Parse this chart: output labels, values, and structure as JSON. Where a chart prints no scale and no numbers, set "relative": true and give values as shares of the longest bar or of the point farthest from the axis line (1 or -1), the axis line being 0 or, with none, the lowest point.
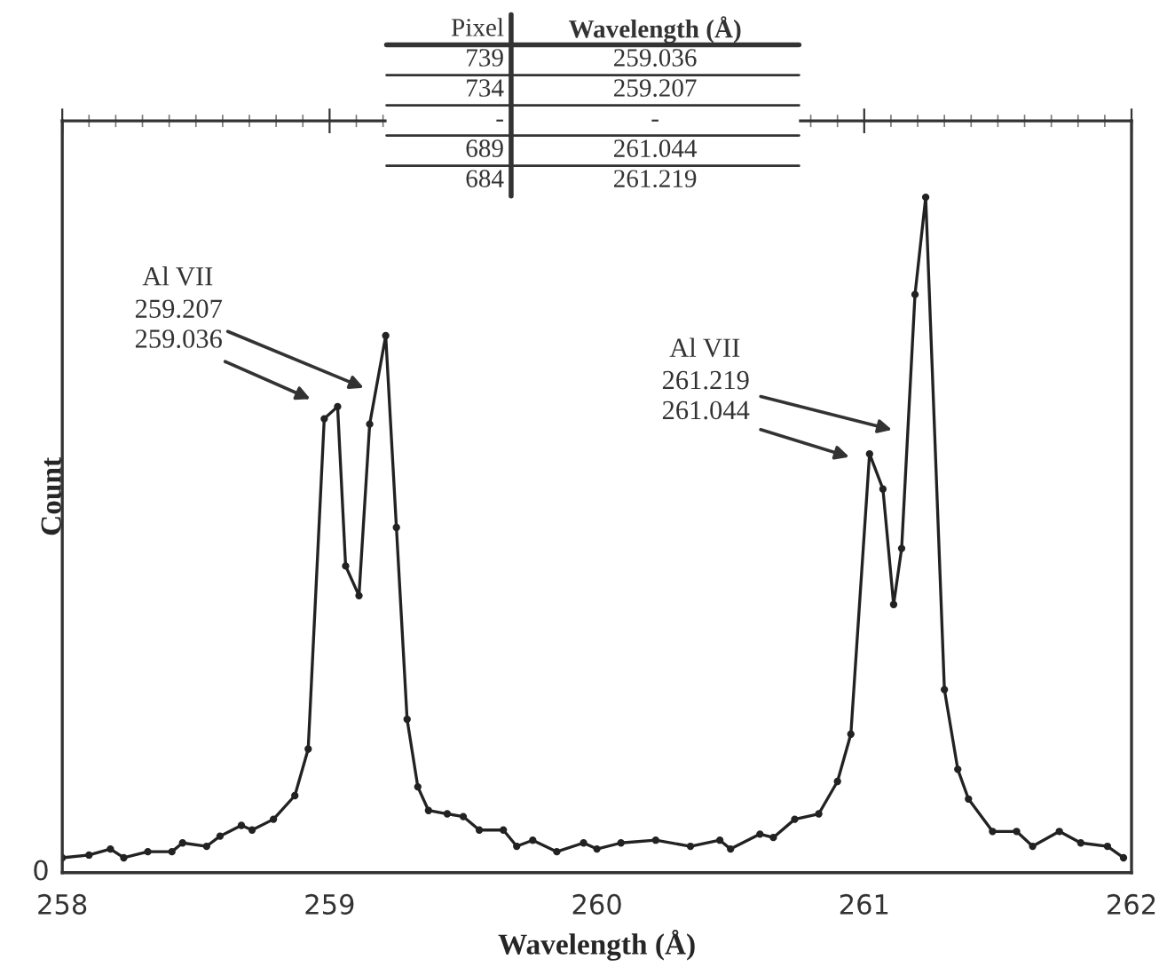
{
  "chart_data": {
    "type": "line",
    "xlabel": "Wavelength (Å)",
    "ylabel": "Count",
    "relative": true,
    "xlim": [
      258,
      262
    ],
    "xticks": [
      258,
      259,
      260,
      261,
      262
    ],
    "grid": false,
    "marker": "circle",
    "line_style": "solid",
    "series": [
      {
        "color": "#222222",
        "x": [
          258.0,
          258.1,
          258.18,
          258.23,
          258.32,
          258.41,
          258.45,
          258.54,
          258.59,
          258.67,
          258.71,
          258.79,
          258.87,
          258.92,
          258.98,
          259.03,
          259.06,
          259.11,
          259.15,
          259.21,
          259.25,
          259.29,
          259.33,
          259.37,
          259.44,
          259.5,
          259.56,
          259.65,
          259.7,
          259.76,
          259.85,
          259.95,
          260.0,
          260.09,
          260.22,
          260.35,
          260.46,
          260.5,
          260.61,
          260.66,
          260.74,
          260.83,
          260.9,
          260.95,
          261.02,
          261.07,
          261.11,
          261.14,
          261.19,
          261.23,
          261.3,
          261.35,
          261.39,
          261.48,
          261.57,
          261.63,
          261.73,
          261.81,
          261.91,
          261.97
        ],
        "values": [
          0.022,
          0.026,
          0.035,
          0.022,
          0.031,
          0.031,
          0.044,
          0.039,
          0.054,
          0.07,
          0.063,
          0.079,
          0.114,
          0.183,
          0.672,
          0.69,
          0.454,
          0.41,
          0.664,
          0.795,
          0.511,
          0.227,
          0.127,
          0.092,
          0.087,
          0.083,
          0.063,
          0.063,
          0.039,
          0.048,
          0.031,
          0.044,
          0.035,
          0.044,
          0.048,
          0.039,
          0.048,
          0.035,
          0.057,
          0.052,
          0.079,
          0.087,
          0.135,
          0.205,
          0.62,
          0.568,
          0.397,
          0.48,
          0.856,
          1.0,
          0.271,
          0.153,
          0.109,
          0.061,
          0.061,
          0.039,
          0.061,
          0.044,
          0.039,
          0.022
        ]
      }
    ],
    "annotations": [
      "Al VII",
      "259.207",
      "259.036",
      "Al VII",
      "261.219",
      "261.044",
      "0",
      "Pixel\tWavelength (Å)\n739\t259.036\n734\t259.207\n-\t-\n689\t261.044\n684\t261.219"
    ]
  }
}
